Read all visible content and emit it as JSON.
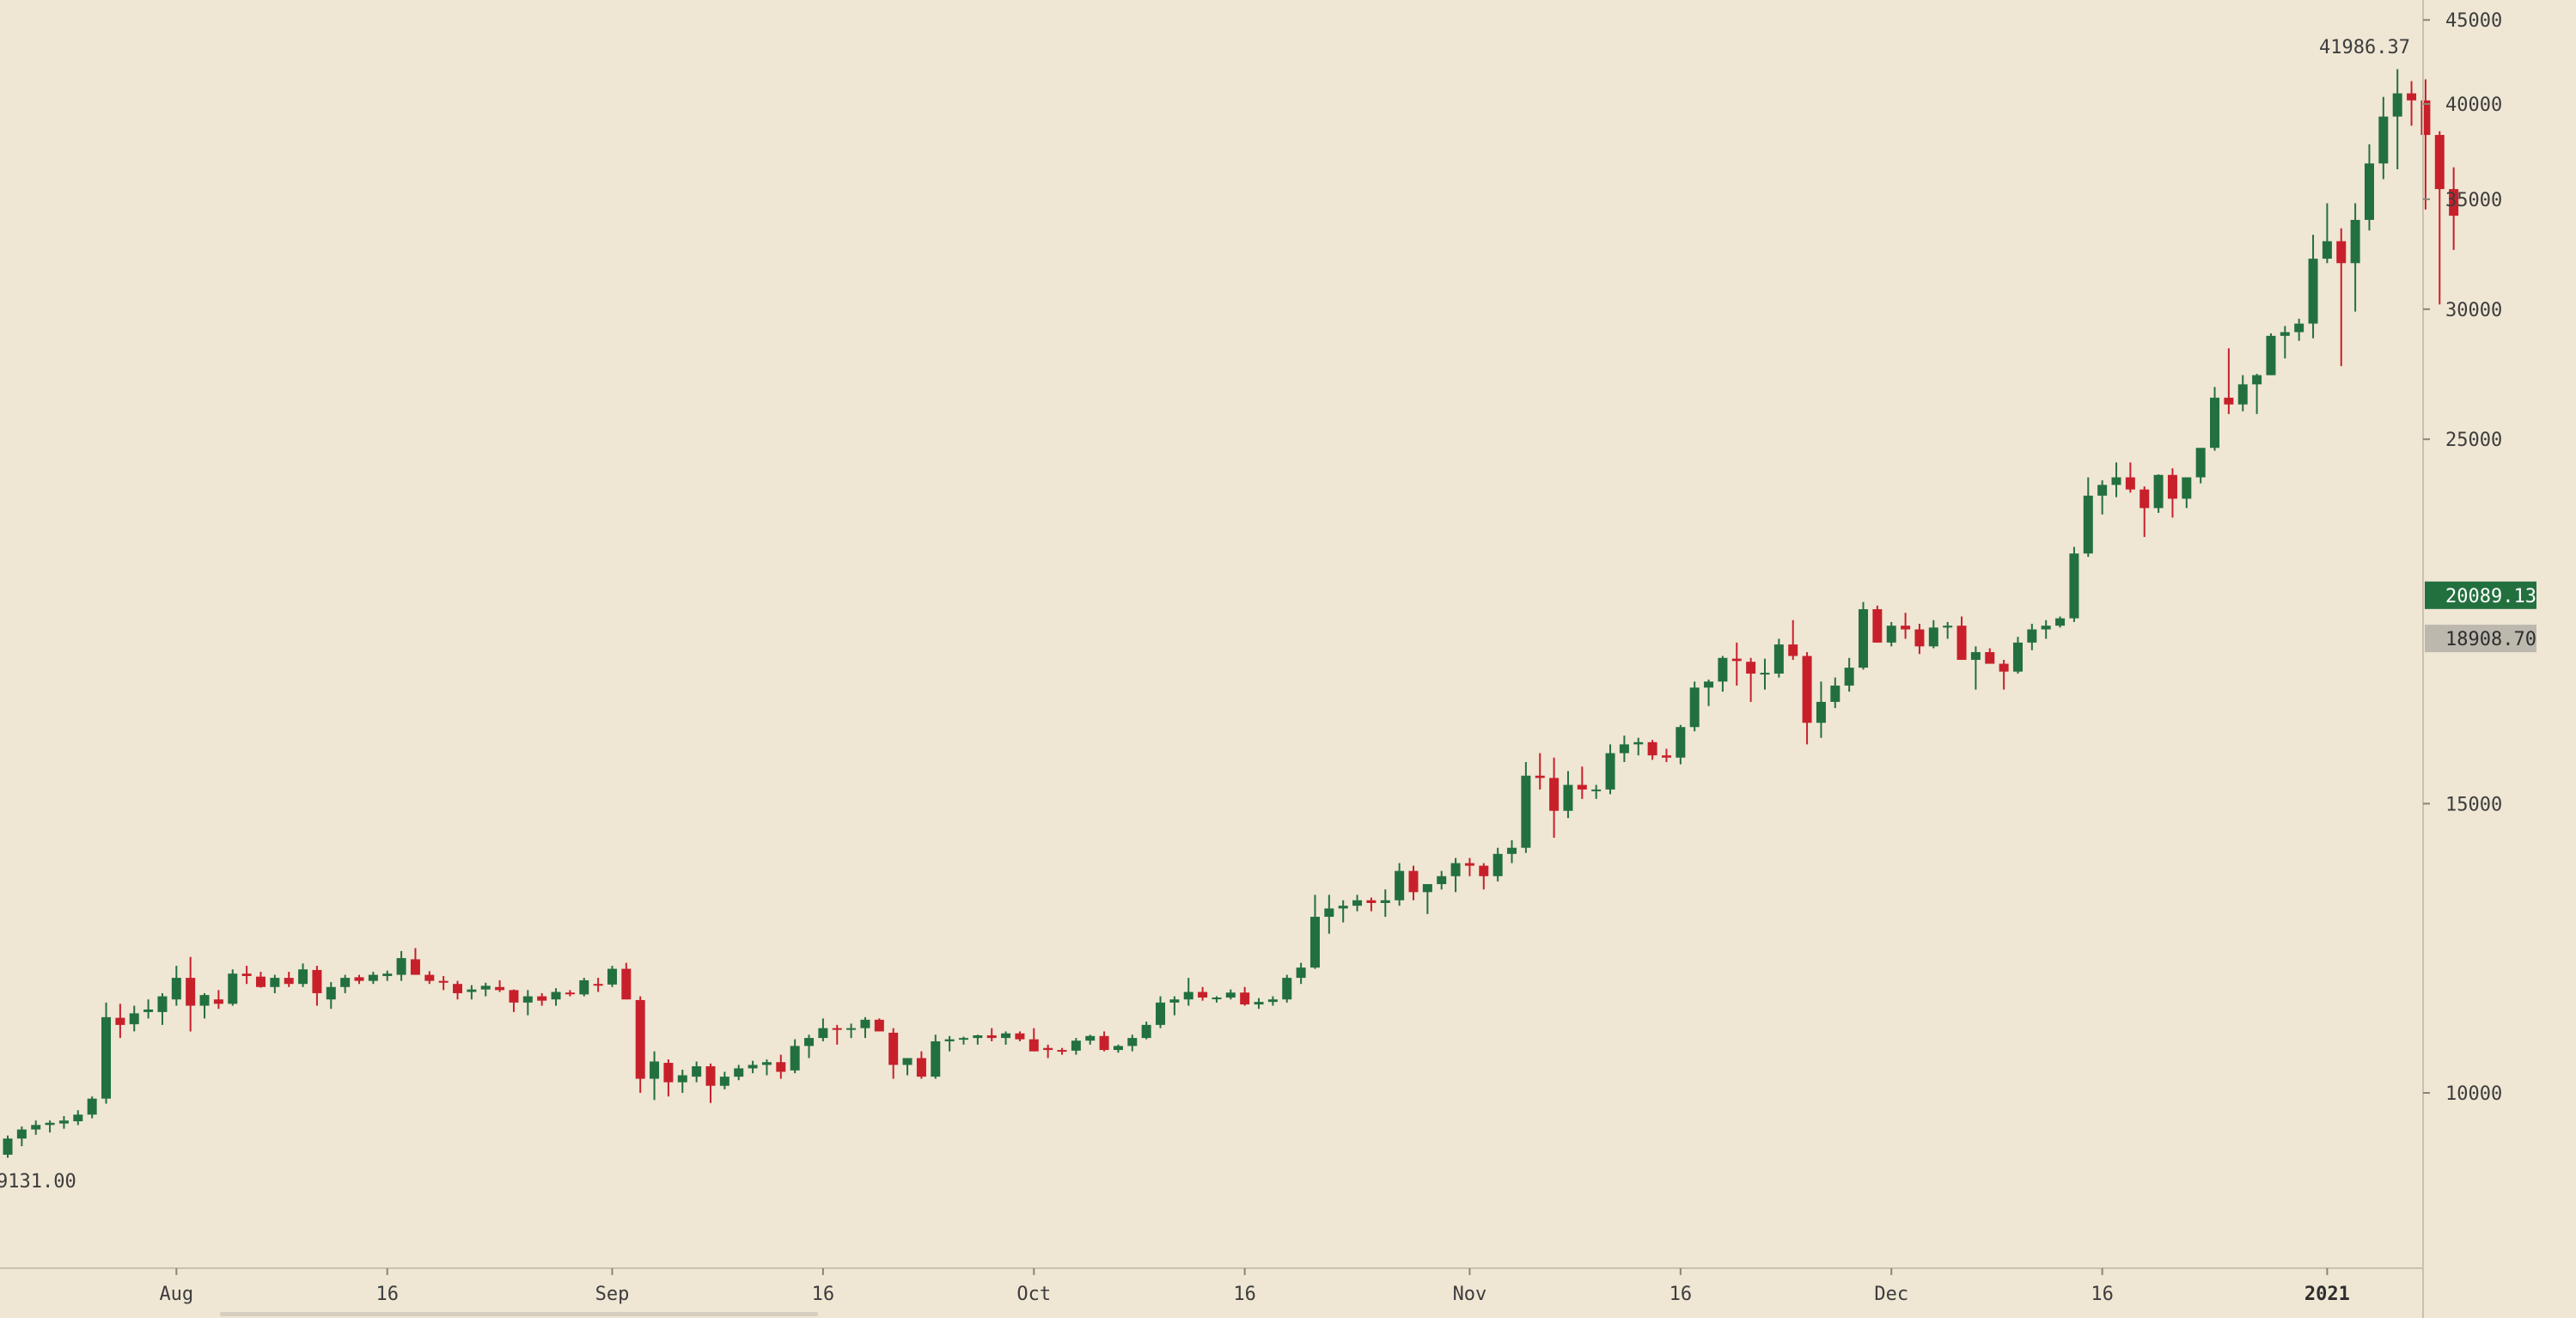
{
  "chart_data": {
    "type": "candlestick",
    "title": "",
    "xlabel": "",
    "ylabel": "",
    "scale": "log",
    "ylim": [
      7900,
      46000
    ],
    "y_ticks": [
      10000,
      15000,
      25000,
      30000,
      35000,
      40000,
      45000
    ],
    "x_ticks": [
      {
        "label": "Aug",
        "index": 12,
        "bold": false
      },
      {
        "label": "16",
        "index": 27,
        "bold": false
      },
      {
        "label": "Sep",
        "index": 43,
        "bold": false
      },
      {
        "label": "16",
        "index": 58,
        "bold": false
      },
      {
        "label": "Oct",
        "index": 73,
        "bold": false
      },
      {
        "label": "16",
        "index": 88,
        "bold": false
      },
      {
        "label": "Nov",
        "index": 104,
        "bold": false
      },
      {
        "label": "16",
        "index": 119,
        "bold": false
      },
      {
        "label": "Dec",
        "index": 134,
        "bold": false
      },
      {
        "label": "16",
        "index": 149,
        "bold": false
      },
      {
        "label": "2021",
        "index": 165,
        "bold": true
      }
    ],
    "candles": [
      [
        9170,
        9420,
        9131,
        9380
      ],
      [
        9380,
        9540,
        9280,
        9500
      ],
      [
        9500,
        9620,
        9430,
        9560
      ],
      [
        9560,
        9620,
        9460,
        9590
      ],
      [
        9580,
        9680,
        9510,
        9620
      ],
      [
        9610,
        9760,
        9560,
        9700
      ],
      [
        9700,
        9950,
        9650,
        9920
      ],
      [
        9920,
        11350,
        9850,
        11120
      ],
      [
        11110,
        11330,
        10800,
        11000
      ],
      [
        11010,
        11300,
        10900,
        11180
      ],
      [
        11200,
        11400,
        11100,
        11240
      ],
      [
        11200,
        11500,
        11000,
        11450
      ],
      [
        11400,
        11950,
        11300,
        11750
      ],
      [
        11750,
        12100,
        10900,
        11300
      ],
      [
        11300,
        11500,
        11100,
        11470
      ],
      [
        11400,
        11550,
        11250,
        11330
      ],
      [
        11330,
        11890,
        11300,
        11820
      ],
      [
        11820,
        11950,
        11650,
        11780
      ],
      [
        11770,
        11850,
        11590,
        11600
      ],
      [
        11600,
        11800,
        11500,
        11750
      ],
      [
        11750,
        11850,
        11600,
        11650
      ],
      [
        11650,
        11990,
        11600,
        11890
      ],
      [
        11880,
        11950,
        11300,
        11500
      ],
      [
        11400,
        11680,
        11250,
        11600
      ],
      [
        11600,
        11800,
        11500,
        11750
      ],
      [
        11760,
        11800,
        11650,
        11700
      ],
      [
        11700,
        11850,
        11650,
        11800
      ],
      [
        11780,
        11870,
        11700,
        11820
      ],
      [
        11800,
        12200,
        11700,
        12080
      ],
      [
        12060,
        12250,
        11800,
        11800
      ],
      [
        11800,
        11860,
        11650,
        11700
      ],
      [
        11700,
        11780,
        11550,
        11670
      ],
      [
        11650,
        11700,
        11400,
        11500
      ],
      [
        11520,
        11630,
        11400,
        11560
      ],
      [
        11560,
        11670,
        11450,
        11620
      ],
      [
        11600,
        11710,
        11520,
        11550
      ],
      [
        11550,
        11560,
        11200,
        11350
      ],
      [
        11350,
        11550,
        11150,
        11450
      ],
      [
        11450,
        11500,
        11300,
        11380
      ],
      [
        11400,
        11580,
        11300,
        11520
      ],
      [
        11510,
        11550,
        11450,
        11490
      ],
      [
        11480,
        11750,
        11450,
        11710
      ],
      [
        11650,
        11750,
        11520,
        11640
      ],
      [
        11640,
        11950,
        11600,
        11900
      ],
      [
        11900,
        12000,
        11400,
        11400
      ],
      [
        11390,
        11450,
        10000,
        10200
      ],
      [
        10200,
        10600,
        9900,
        10450
      ],
      [
        10430,
        10480,
        9950,
        10150
      ],
      [
        10150,
        10330,
        10000,
        10250
      ],
      [
        10230,
        10450,
        10150,
        10380
      ],
      [
        10380,
        10420,
        9860,
        10100
      ],
      [
        10100,
        10300,
        10050,
        10230
      ],
      [
        10230,
        10400,
        10180,
        10350
      ],
      [
        10350,
        10460,
        10280,
        10400
      ],
      [
        10400,
        10480,
        10250,
        10440
      ],
      [
        10440,
        10550,
        10200,
        10300
      ],
      [
        10320,
        10780,
        10280,
        10680
      ],
      [
        10680,
        10850,
        10500,
        10800
      ],
      [
        10800,
        11100,
        10750,
        10950
      ],
      [
        10950,
        11000,
        10700,
        10930
      ],
      [
        10930,
        11020,
        10800,
        10950
      ],
      [
        10950,
        11120,
        10800,
        11080
      ],
      [
        11080,
        11100,
        10950,
        10900
      ],
      [
        10880,
        10950,
        10200,
        10400
      ],
      [
        10400,
        10500,
        10250,
        10500
      ],
      [
        10500,
        10600,
        10200,
        10230
      ],
      [
        10230,
        10850,
        10200,
        10750
      ],
      [
        10750,
        10830,
        10600,
        10780
      ],
      [
        10780,
        10820,
        10700,
        10800
      ],
      [
        10800,
        10850,
        10700,
        10840
      ],
      [
        10840,
        10950,
        10750,
        10800
      ],
      [
        10800,
        10900,
        10700,
        10870
      ],
      [
        10870,
        10900,
        10750,
        10780
      ],
      [
        10780,
        10950,
        10600,
        10600
      ],
      [
        10650,
        10700,
        10500,
        10620
      ],
      [
        10620,
        10650,
        10550,
        10610
      ],
      [
        10610,
        10800,
        10550,
        10760
      ],
      [
        10760,
        10850,
        10700,
        10830
      ],
      [
        10830,
        10900,
        10600,
        10620
      ],
      [
        10620,
        10700,
        10580,
        10680
      ],
      [
        10680,
        10850,
        10600,
        10800
      ],
      [
        10800,
        11050,
        10780,
        11000
      ],
      [
        11000,
        11450,
        10950,
        11350
      ],
      [
        11350,
        11450,
        11150,
        11400
      ],
      [
        11400,
        11750,
        11300,
        11520
      ],
      [
        11520,
        11600,
        11380,
        11430
      ],
      [
        11430,
        11450,
        11350,
        11430
      ],
      [
        11430,
        11560,
        11400,
        11510
      ],
      [
        11510,
        11600,
        11300,
        11320
      ],
      [
        11320,
        11420,
        11250,
        11360
      ],
      [
        11360,
        11450,
        11300,
        11400
      ],
      [
        11400,
        11800,
        11350,
        11750
      ],
      [
        11750,
        12000,
        11650,
        11920
      ],
      [
        11920,
        13200,
        11900,
        12800
      ],
      [
        12800,
        13200,
        12500,
        12950
      ],
      [
        12950,
        13100,
        12700,
        13000
      ],
      [
        13000,
        13200,
        12900,
        13100
      ],
      [
        13100,
        13150,
        12900,
        13050
      ],
      [
        13050,
        13300,
        12800,
        13100
      ],
      [
        13100,
        13800,
        13000,
        13650
      ],
      [
        13650,
        13750,
        13100,
        13250
      ],
      [
        13250,
        13400,
        12850,
        13400
      ],
      [
        13400,
        13650,
        13300,
        13550
      ],
      [
        13550,
        13900,
        13250,
        13800
      ],
      [
        13800,
        13900,
        13550,
        13750
      ],
      [
        13750,
        13800,
        13300,
        13550
      ],
      [
        13550,
        14100,
        13450,
        13980
      ],
      [
        13980,
        14250,
        13800,
        14100
      ],
      [
        14100,
        15900,
        14000,
        15600
      ],
      [
        15600,
        16100,
        15300,
        15550
      ],
      [
        15550,
        16000,
        14300,
        14850
      ],
      [
        14850,
        15700,
        14700,
        15400
      ],
      [
        15400,
        15800,
        15100,
        15300
      ],
      [
        15300,
        15400,
        15100,
        15300
      ],
      [
        15300,
        16300,
        15200,
        16100
      ],
      [
        16100,
        16500,
        15900,
        16300
      ],
      [
        16300,
        16450,
        16050,
        16350
      ],
      [
        16350,
        16400,
        15950,
        16050
      ],
      [
        16050,
        16200,
        15900,
        16000
      ],
      [
        16000,
        16750,
        15850,
        16700
      ],
      [
        16700,
        17800,
        16600,
        17650
      ],
      [
        17650,
        17850,
        17200,
        17800
      ],
      [
        17800,
        18450,
        17550,
        18400
      ],
      [
        18380,
        18800,
        17700,
        18320
      ],
      [
        18300,
        18400,
        17300,
        18000
      ],
      [
        18000,
        18380,
        17600,
        18020
      ],
      [
        18000,
        18900,
        17900,
        18750
      ],
      [
        18750,
        19400,
        18350,
        18450
      ],
      [
        18450,
        18550,
        16300,
        16800
      ],
      [
        16800,
        17800,
        16450,
        17300
      ],
      [
        17300,
        17900,
        17150,
        17700
      ],
      [
        17700,
        18400,
        17550,
        18150
      ],
      [
        18150,
        19900,
        18100,
        19700
      ],
      [
        19700,
        19800,
        18800,
        18800
      ],
      [
        18800,
        19350,
        18700,
        19250
      ],
      [
        19250,
        19600,
        18900,
        19150
      ],
      [
        19150,
        19300,
        18500,
        18700
      ],
      [
        18700,
        19400,
        18650,
        19200
      ],
      [
        19200,
        19350,
        18900,
        19250
      ],
      [
        19250,
        19500,
        18500,
        18350
      ],
      [
        18350,
        18700,
        17600,
        18550
      ],
      [
        18550,
        18650,
        18350,
        18250
      ],
      [
        18250,
        18350,
        17600,
        18050
      ],
      [
        18050,
        18950,
        18000,
        18800
      ],
      [
        18800,
        19300,
        18600,
        19150
      ],
      [
        19150,
        19400,
        18900,
        19250
      ],
      [
        19250,
        19500,
        19200,
        19450
      ],
      [
        19450,
        21500,
        19350,
        21300
      ],
      [
        21300,
        23700,
        21200,
        23100
      ],
      [
        23100,
        23600,
        22500,
        23450
      ],
      [
        23450,
        24200,
        23050,
        23700
      ],
      [
        23700,
        24200,
        23200,
        23300
      ],
      [
        23300,
        23400,
        21800,
        22700
      ],
      [
        22700,
        23800,
        22550,
        23780
      ],
      [
        23780,
        24000,
        22400,
        23000
      ],
      [
        23000,
        23700,
        22700,
        23700
      ],
      [
        23700,
        24600,
        23500,
        24700
      ],
      [
        24700,
        26900,
        24600,
        26500
      ],
      [
        26500,
        28400,
        25900,
        26250
      ],
      [
        26250,
        27350,
        26000,
        27000
      ],
      [
        27000,
        27400,
        25900,
        27350
      ],
      [
        27350,
        29000,
        27350,
        28900
      ],
      [
        28900,
        29300,
        28000,
        29050
      ],
      [
        29050,
        29600,
        28700,
        29400
      ],
      [
        29400,
        33300,
        28800,
        32200
      ],
      [
        32200,
        34800,
        32000,
        33000
      ],
      [
        33000,
        33600,
        27700,
        32000
      ],
      [
        32000,
        34800,
        29900,
        34000
      ],
      [
        34000,
        37800,
        33500,
        36800
      ],
      [
        36800,
        40400,
        36000,
        39300
      ],
      [
        39300,
        42000,
        36500,
        40600
      ],
      [
        40600,
        41300,
        38800,
        40200
      ],
      [
        40200,
        41400,
        34500,
        38300
      ],
      [
        38300,
        38500,
        30200,
        35500
      ],
      [
        35500,
        36600,
        32600,
        34200
      ]
    ]
  },
  "price_labels": {
    "high": "41986.37",
    "low": "9131.00"
  },
  "price_badges": {
    "current": {
      "value": "20089.13",
      "price": 20089.13,
      "color": "#23703f"
    },
    "reference": {
      "value": "18908.70",
      "price": 18908.7,
      "color": "#bcb8ae"
    }
  },
  "colors": {
    "background": "#efe6d4",
    "up": "#23703f",
    "down": "#c8202b",
    "axis": "#c9c0ad",
    "text": "#3d3d3d"
  }
}
